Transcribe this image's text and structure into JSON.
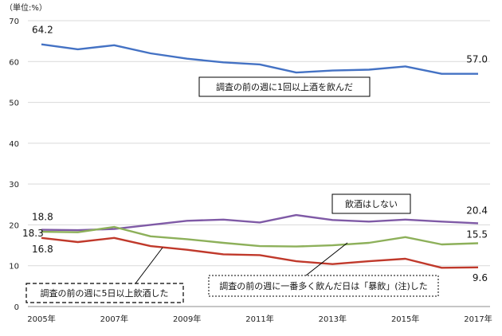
{
  "unit_label": "（単位:%）",
  "chart_data": {
    "type": "line",
    "x": [
      2005,
      2006,
      2007,
      2008,
      2009,
      2010,
      2011,
      2012,
      2013,
      2014,
      2015,
      2016,
      2017
    ],
    "x_tick_labels": [
      "2005年",
      "2007年",
      "2009年",
      "2011年",
      "2013年",
      "2015年",
      "2017年"
    ],
    "x_tick_years": [
      2005,
      2007,
      2009,
      2011,
      2013,
      2015,
      2017
    ],
    "y_ticks": [
      0,
      10,
      20,
      30,
      40,
      50,
      60,
      70
    ],
    "ylim": [
      0,
      70
    ],
    "grid": true,
    "series": [
      {
        "name": "調査の前の週に1回以上酒を飲んだ",
        "color": "#4472c4",
        "values": [
          64.2,
          63.0,
          64.0,
          62.0,
          60.7,
          59.8,
          59.3,
          57.3,
          57.8,
          58.0,
          58.8,
          57.0,
          57.0
        ],
        "start_label": "64.2",
        "end_label": "57.0"
      },
      {
        "name": "飲酒はしない",
        "color": "#7f5aa6",
        "values": [
          18.8,
          18.7,
          19.0,
          20.0,
          21.0,
          21.3,
          20.6,
          22.4,
          21.2,
          20.8,
          21.3,
          20.8,
          20.4
        ],
        "start_label": "18.8",
        "end_label": "20.4"
      },
      {
        "name": "調査の前の週に一番多く飲んだ日は「暴飲」(注)した",
        "color": "#8db05a",
        "values": [
          18.3,
          18.2,
          19.5,
          17.2,
          16.5,
          15.6,
          14.8,
          14.7,
          15.0,
          15.6,
          17.0,
          15.2,
          15.5
        ],
        "start_label": "18.3",
        "end_label": "15.5"
      },
      {
        "name": "調査の前の週に5日以上飲酒した",
        "color": "#c0392b",
        "values": [
          16.8,
          15.8,
          16.8,
          14.8,
          13.9,
          12.8,
          12.6,
          11.1,
          10.4,
          11.1,
          11.7,
          9.5,
          9.6
        ],
        "start_label": "16.8",
        "end_label": "9.6"
      }
    ]
  }
}
